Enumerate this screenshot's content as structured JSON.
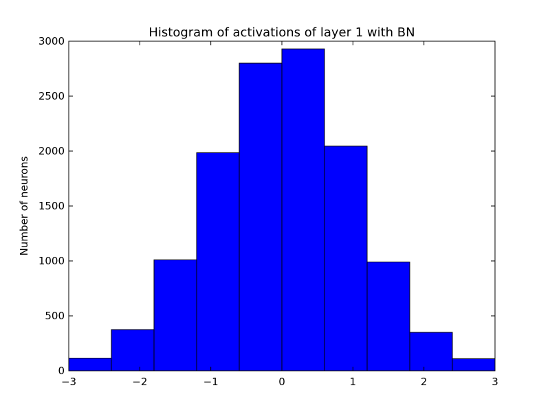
{
  "chart_data": {
    "type": "bar",
    "title": "Histogram of activations of layer 1  with BN",
    "xlabel": "",
    "ylabel": "Number of neurons",
    "xlim": [
      -3,
      3
    ],
    "ylim": [
      0,
      3000
    ],
    "x_ticks": [
      "−3",
      "−2",
      "−1",
      "0",
      "1",
      "2",
      "3"
    ],
    "x_tick_values": [
      -3,
      -2,
      -1,
      0,
      1,
      2,
      3
    ],
    "y_ticks": [
      "0",
      "500",
      "1000",
      "1500",
      "2000",
      "2500",
      "3000"
    ],
    "y_tick_values": [
      0,
      500,
      1000,
      1500,
      2000,
      2500,
      3000
    ],
    "bin_edges": [
      -3,
      -2.4,
      -1.8,
      -1.2,
      -0.6,
      0,
      0.6,
      1.2,
      1.8,
      2.4,
      3
    ],
    "values": [
      115,
      375,
      1010,
      1985,
      2800,
      2930,
      2045,
      990,
      350,
      110
    ],
    "bar_color": "#0000ff",
    "edge_color": "#000000",
    "grid": false,
    "legend": "none"
  }
}
